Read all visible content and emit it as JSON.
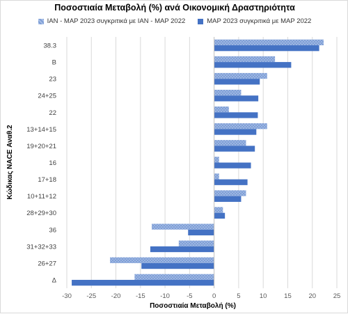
{
  "chart_data": {
    "type": "bar",
    "orientation": "horizontal",
    "title": "Ποσοστιαία Μεταβολή (%) ανά Οικονομική Δραστηριότητα",
    "xlabel": "Ποσοστιαία Μεταβολή (%)",
    "ylabel": "Κώδικας NACE Αναθ.2",
    "categories": [
      "38.3",
      "B",
      "23",
      "24+25",
      "22",
      "13+14+15",
      "19+20+21",
      "16",
      "17+18",
      "10+11+12",
      "28+29+30",
      "36",
      "31+32+33",
      "26+27",
      "Δ"
    ],
    "series": [
      {
        "name": "ΙΑΝ - ΜΑΡ 2023 συγκριτικά με ΙΑΝ - ΜΑΡ 2022",
        "color": "#8faadc",
        "pattern": "checkered",
        "values": [
          22.3,
          12.4,
          10.8,
          5.5,
          3.0,
          10.8,
          6.5,
          1.0,
          1.0,
          6.5,
          1.8,
          -12.7,
          -7.2,
          -21.2,
          -16.2
        ]
      },
      {
        "name": "ΜΑΡ 2023 συγκριτικά με ΜΑΡ 2022",
        "color": "#4472c4",
        "pattern": "solid",
        "values": [
          21.4,
          15.7,
          9.3,
          9.0,
          8.9,
          8.6,
          8.3,
          7.5,
          6.8,
          5.5,
          2.2,
          -5.3,
          -13.0,
          -14.8,
          -29.0
        ]
      }
    ],
    "xlim": [
      -30,
      25
    ],
    "xticks": [
      -30,
      -25,
      -20,
      -15,
      -10,
      -5,
      0,
      5,
      10,
      15,
      20,
      25
    ],
    "grid": true,
    "legend_position": "top"
  }
}
